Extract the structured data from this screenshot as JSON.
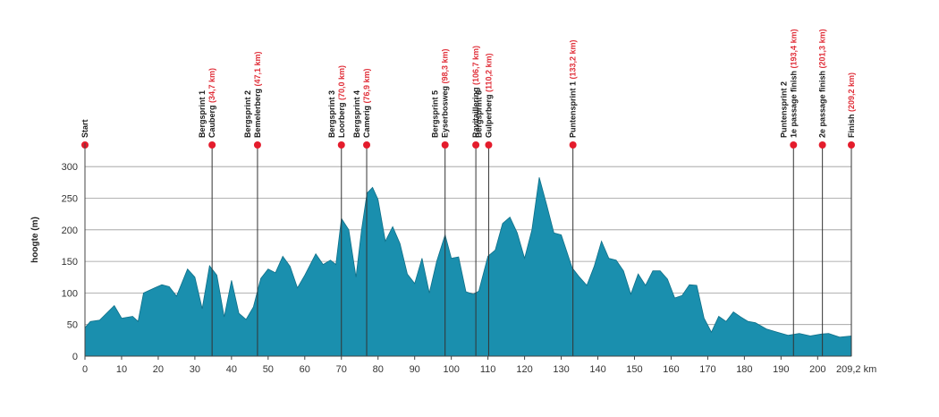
{
  "colors": {
    "fill": "#1a8fae",
    "stroke": "#0e6f88",
    "grid": "#9a9a9a",
    "marker_dot": "#e41c2c",
    "marker_line": "#333333",
    "km_text": "#e0303a"
  },
  "chart_data": {
    "type": "area",
    "title": "",
    "ylabel": "hoogte (m)",
    "xlabel": "",
    "x_end_label": "209,2 km",
    "xlim": [
      0,
      209.2
    ],
    "ylim": [
      0,
      330
    ],
    "grid": "horizontal",
    "y_ticks": [
      0,
      50,
      100,
      150,
      200,
      250,
      300
    ],
    "x_ticks": [
      0,
      10,
      20,
      30,
      40,
      50,
      60,
      70,
      80,
      90,
      100,
      110,
      120,
      130,
      140,
      150,
      160,
      170,
      180,
      190,
      200
    ],
    "profile": [
      [
        0,
        45
      ],
      [
        1.5,
        55
      ],
      [
        4,
        57
      ],
      [
        8,
        80
      ],
      [
        10,
        60
      ],
      [
        13,
        63
      ],
      [
        14.5,
        55
      ],
      [
        16,
        100
      ],
      [
        19,
        108
      ],
      [
        21,
        113
      ],
      [
        23,
        110
      ],
      [
        25,
        95
      ],
      [
        28,
        138
      ],
      [
        30,
        125
      ],
      [
        32,
        75
      ],
      [
        34,
        143
      ],
      [
        36,
        128
      ],
      [
        38,
        62
      ],
      [
        40,
        120
      ],
      [
        42,
        68
      ],
      [
        44,
        58
      ],
      [
        46,
        78
      ],
      [
        48,
        123
      ],
      [
        50,
        138
      ],
      [
        52,
        132
      ],
      [
        54,
        158
      ],
      [
        56,
        142
      ],
      [
        58,
        108
      ],
      [
        60,
        128
      ],
      [
        63,
        162
      ],
      [
        65,
        145
      ],
      [
        67,
        152
      ],
      [
        68.5,
        145
      ],
      [
        70,
        218
      ],
      [
        72,
        200
      ],
      [
        74,
        125
      ],
      [
        75.5,
        200
      ],
      [
        77,
        258
      ],
      [
        78.5,
        267
      ],
      [
        80,
        248
      ],
      [
        82,
        182
      ],
      [
        84,
        205
      ],
      [
        86,
        178
      ],
      [
        88,
        130
      ],
      [
        90,
        115
      ],
      [
        92,
        155
      ],
      [
        94,
        100
      ],
      [
        96,
        150
      ],
      [
        98.3,
        192
      ],
      [
        100,
        155
      ],
      [
        102,
        157
      ],
      [
        104,
        102
      ],
      [
        106,
        98
      ],
      [
        107.5,
        103
      ],
      [
        110,
        158
      ],
      [
        112,
        168
      ],
      [
        114,
        210
      ],
      [
        116,
        220
      ],
      [
        118,
        195
      ],
      [
        120,
        155
      ],
      [
        122,
        200
      ],
      [
        124,
        283
      ],
      [
        126,
        240
      ],
      [
        128,
        195
      ],
      [
        130,
        192
      ],
      [
        133,
        140
      ],
      [
        135,
        125
      ],
      [
        137,
        112
      ],
      [
        139,
        142
      ],
      [
        141,
        182
      ],
      [
        143,
        155
      ],
      [
        145,
        152
      ],
      [
        147,
        135
      ],
      [
        149,
        98
      ],
      [
        151,
        130
      ],
      [
        153,
        112
      ],
      [
        155,
        135
      ],
      [
        157,
        135
      ],
      [
        159,
        122
      ],
      [
        161,
        92
      ],
      [
        163,
        96
      ],
      [
        165,
        113
      ],
      [
        167,
        112
      ],
      [
        169,
        60
      ],
      [
        171,
        38
      ],
      [
        173,
        63
      ],
      [
        175,
        55
      ],
      [
        177,
        70
      ],
      [
        179,
        62
      ],
      [
        181,
        55
      ],
      [
        183,
        53
      ],
      [
        186,
        43
      ],
      [
        189,
        38
      ],
      [
        192,
        33
      ],
      [
        195,
        36
      ],
      [
        198,
        32
      ],
      [
        201,
        35
      ],
      [
        203,
        36
      ],
      [
        206,
        30
      ],
      [
        209.2,
        32
      ]
    ],
    "markers": [
      {
        "km": 0,
        "name": [
          "Start"
        ],
        "km_label": ""
      },
      {
        "km": 34.7,
        "name": [
          "Bergsprint 1",
          "Cauberg"
        ],
        "km_label": "(34,7 km)"
      },
      {
        "km": 47.1,
        "name": [
          "Bergsprint 2",
          "Bemelerberg"
        ],
        "km_label": "(47,1 km)"
      },
      {
        "km": 70.0,
        "name": [
          "Bergsprint 3",
          "Loorberg"
        ],
        "km_label": "(70,0 km)"
      },
      {
        "km": 76.9,
        "name": [
          "Bergsprint 4",
          "Camerig"
        ],
        "km_label": "(76,9 km)"
      },
      {
        "km": 98.3,
        "name": [
          "Bergsprint 5",
          "Eyserbosweg"
        ],
        "km_label": "(98,3 km)"
      },
      {
        "km": 106.7,
        "name": [
          "Ravitaillering"
        ],
        "km_label": "(106,7 km)"
      },
      {
        "km": 110.2,
        "name": [
          "Bergsprint 6",
          "Gulperberg"
        ],
        "km_label": "(110,2 km)"
      },
      {
        "km": 133.2,
        "name": [
          "Puntensprint 1"
        ],
        "km_label": "(133,2 km)"
      },
      {
        "km": 193.4,
        "name": [
          "Puntensprint 2",
          "1e passage finish"
        ],
        "km_label": "(193,4 km)"
      },
      {
        "km": 201.3,
        "name": [
          "2e passage finish"
        ],
        "km_label": "(201,3 km)"
      },
      {
        "km": 209.2,
        "name": [
          "Finish"
        ],
        "km_label": "(209,2 km)"
      }
    ]
  }
}
